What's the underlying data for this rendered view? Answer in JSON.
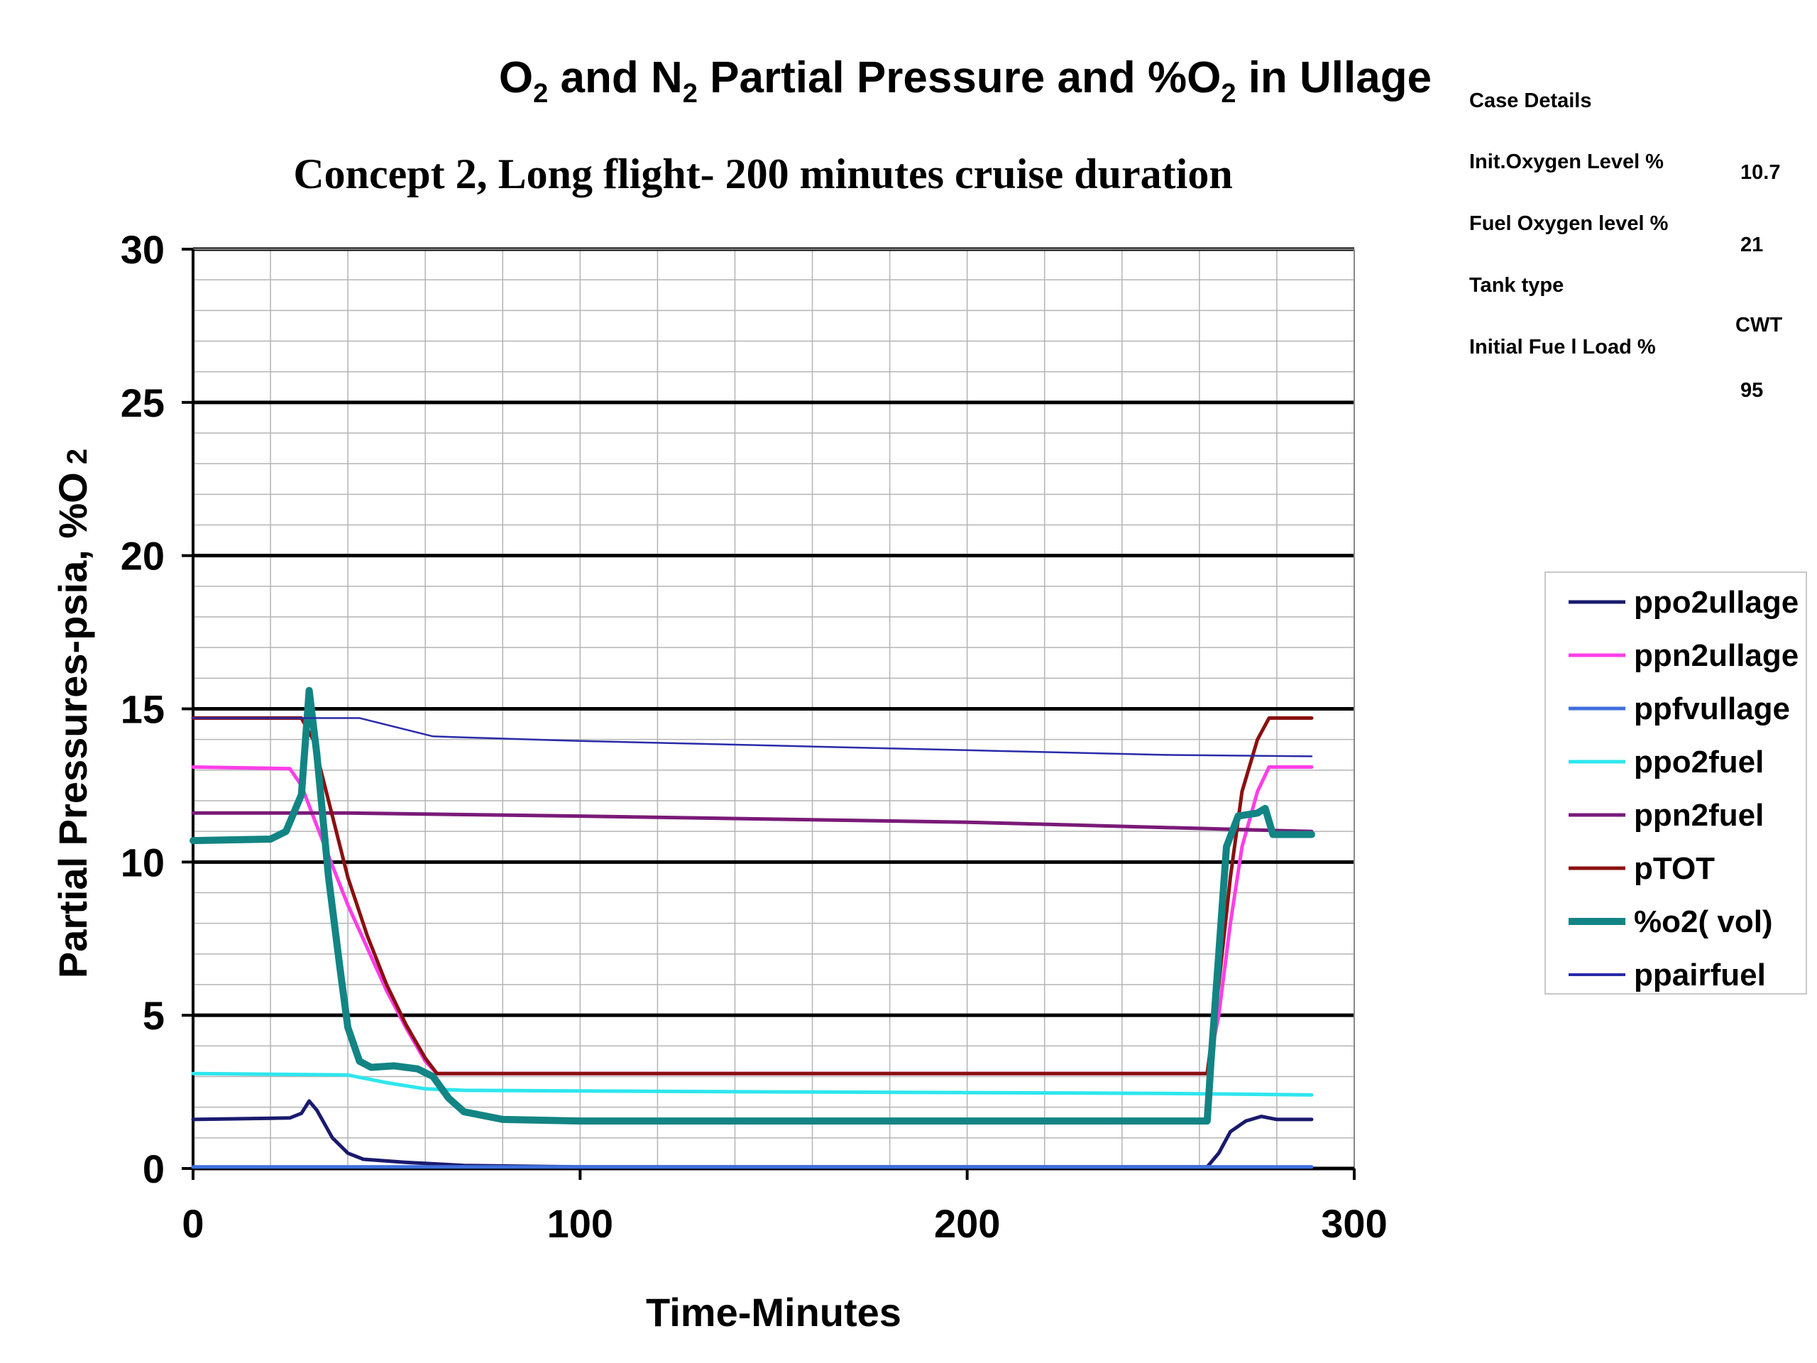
{
  "chart_data": {
    "type": "line",
    "title": "O2 and N2 Partial Pressure and %O2 in Ullage",
    "title_parts": [
      "O",
      "2",
      " and N",
      "2",
      " Partial Pressure and %O",
      "2",
      " in Ullage"
    ],
    "subtitle": "Concept 2, Long flight- 200 minutes cruise duration",
    "xlabel": "Time-Minutes",
    "ylabel_parts": [
      "Partial Pressures-psia, %O",
      " 2"
    ],
    "xlim": [
      0,
      300
    ],
    "ylim": [
      0,
      30
    ],
    "x_ticks": [
      0,
      100,
      200,
      300
    ],
    "y_ticks": [
      0,
      5,
      10,
      15,
      20,
      25,
      30
    ],
    "x_tick_labels": [
      "0",
      "100",
      "200",
      "300"
    ],
    "y_tick_labels": [
      "0",
      "5",
      "10",
      "15",
      "20",
      "25",
      "30"
    ],
    "grid": true,
    "legend_position": "right",
    "series": [
      {
        "name": "ppo2ullage",
        "color": "#1a1a6e",
        "width": 5,
        "points": [
          [
            0,
            1.6
          ],
          [
            25,
            1.65
          ],
          [
            28,
            1.8
          ],
          [
            30,
            2.2
          ],
          [
            32,
            1.9
          ],
          [
            36,
            1.0
          ],
          [
            40,
            0.5
          ],
          [
            44,
            0.3
          ],
          [
            55,
            0.2
          ],
          [
            70,
            0.1
          ],
          [
            100,
            0.05
          ],
          [
            262,
            0.05
          ],
          [
            265,
            0.5
          ],
          [
            268,
            1.2
          ],
          [
            272,
            1.55
          ],
          [
            276,
            1.7
          ],
          [
            280,
            1.6
          ],
          [
            289,
            1.6
          ]
        ]
      },
      {
        "name": "ppn2ullage",
        "color": "#ff3ee8",
        "width": 5,
        "points": [
          [
            0,
            13.1
          ],
          [
            25,
            13.05
          ],
          [
            28,
            12.5
          ],
          [
            31,
            11.5
          ],
          [
            35,
            10.2
          ],
          [
            40,
            8.6
          ],
          [
            45,
            7.2
          ],
          [
            50,
            5.8
          ],
          [
            55,
            4.6
          ],
          [
            60,
            3.5
          ],
          [
            63,
            3.1
          ],
          [
            262,
            3.1
          ],
          [
            265,
            5.0
          ],
          [
            268,
            8.0
          ],
          [
            271,
            10.5
          ],
          [
            275,
            12.3
          ],
          [
            278,
            13.1
          ],
          [
            289,
            13.1
          ]
        ]
      },
      {
        "name": "ppfvullage",
        "color": "#3f6fdd",
        "width": 5,
        "points": [
          [
            0,
            0.05
          ],
          [
            289,
            0.05
          ]
        ]
      },
      {
        "name": "ppo2fuel",
        "color": "#2ee6ee",
        "width": 5,
        "points": [
          [
            0,
            3.1
          ],
          [
            40,
            3.05
          ],
          [
            50,
            2.8
          ],
          [
            60,
            2.6
          ],
          [
            70,
            2.55
          ],
          [
            150,
            2.5
          ],
          [
            250,
            2.45
          ],
          [
            289,
            2.4
          ]
        ]
      },
      {
        "name": "ppn2fuel",
        "color": "#7a1a78",
        "width": 5,
        "points": [
          [
            0,
            11.6
          ],
          [
            40,
            11.6
          ],
          [
            100,
            11.5
          ],
          [
            200,
            11.3
          ],
          [
            289,
            11.0
          ]
        ]
      },
      {
        "name": "pTOT",
        "color": "#8a1010",
        "width": 5,
        "points": [
          [
            0,
            14.7
          ],
          [
            28,
            14.7
          ],
          [
            31,
            14.0
          ],
          [
            35,
            12.0
          ],
          [
            40,
            9.5
          ],
          [
            45,
            7.6
          ],
          [
            50,
            6.0
          ],
          [
            55,
            4.7
          ],
          [
            60,
            3.6
          ],
          [
            63,
            3.1
          ],
          [
            262,
            3.1
          ],
          [
            265,
            6.0
          ],
          [
            268,
            9.5
          ],
          [
            271,
            12.3
          ],
          [
            275,
            14.0
          ],
          [
            278,
            14.7
          ],
          [
            289,
            14.7
          ]
        ]
      },
      {
        "name": "%o2( vol)",
        "color": "#138484",
        "width": 10,
        "points": [
          [
            0,
            10.7
          ],
          [
            20,
            10.75
          ],
          [
            24,
            11.0
          ],
          [
            28,
            12.2
          ],
          [
            30,
            15.6
          ],
          [
            32,
            13.5
          ],
          [
            35,
            9.5
          ],
          [
            38,
            6.5
          ],
          [
            40,
            4.6
          ],
          [
            43,
            3.5
          ],
          [
            46,
            3.3
          ],
          [
            52,
            3.35
          ],
          [
            58,
            3.25
          ],
          [
            62,
            3.0
          ],
          [
            66,
            2.3
          ],
          [
            70,
            1.85
          ],
          [
            80,
            1.6
          ],
          [
            100,
            1.55
          ],
          [
            262,
            1.55
          ],
          [
            263,
            3.5
          ],
          [
            265,
            7.0
          ],
          [
            267,
            10.5
          ],
          [
            270,
            11.5
          ],
          [
            275,
            11.6
          ],
          [
            277,
            11.75
          ],
          [
            279,
            10.9
          ],
          [
            289,
            10.9
          ]
        ]
      },
      {
        "name": "ppairfuel",
        "color": "#2a2aaa",
        "width": 2.5,
        "points": [
          [
            0,
            14.7
          ],
          [
            43,
            14.7
          ],
          [
            62,
            14.1
          ],
          [
            100,
            13.95
          ],
          [
            150,
            13.8
          ],
          [
            200,
            13.65
          ],
          [
            250,
            13.5
          ],
          [
            289,
            13.45
          ]
        ]
      }
    ]
  },
  "case_details": {
    "heading": "Case Details",
    "rows": [
      {
        "label": "Init.Oxygen Level %",
        "value": "10.7"
      },
      {
        "label": "Fuel Oxygen level %",
        "value": "21"
      },
      {
        "label": "Tank type",
        "value": "CWT"
      },
      {
        "label": "Initial Fue l Load %",
        "value": "95"
      }
    ]
  }
}
